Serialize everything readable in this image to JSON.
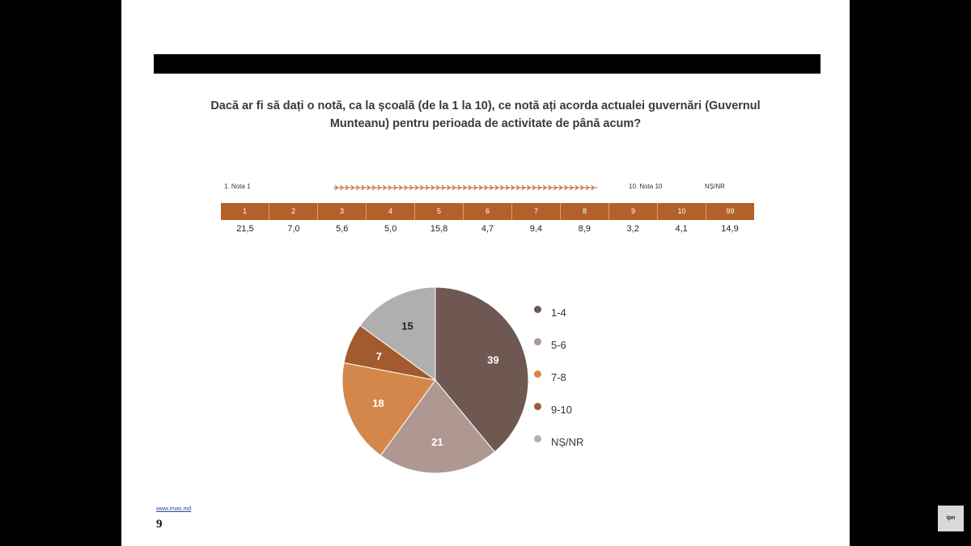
{
  "question": "Dacă ar fi să dați o notă, ca la școală (de la 1 la 10), ce notă ați acorda actualei guvernări (Guvernul Munteanu) pentru perioada de activitate de până acum?",
  "scale": {
    "left_label": "1. Nota 1",
    "right_label": "10. Nota 10",
    "nsnr_label": "NȘ/NR"
  },
  "grade_table": {
    "headers": [
      "1",
      "2",
      "3",
      "4",
      "5",
      "6",
      "7",
      "8",
      "9",
      "10",
      "99"
    ],
    "values": [
      "21,5",
      "7,0",
      "5,6",
      "5,0",
      "15,8",
      "4,7",
      "9,4",
      "8,9",
      "3,2",
      "4,1",
      "14,9"
    ]
  },
  "chart_data": {
    "type": "pie",
    "title": "",
    "categories": [
      "1-4",
      "5-6",
      "7-8",
      "9-10",
      "NȘ/NR"
    ],
    "values": [
      39,
      21,
      18,
      7,
      15
    ],
    "colors": [
      "#6e5851",
      "#ae9891",
      "#d4874a",
      "#a25a2f",
      "#b0aeae"
    ]
  },
  "footer": {
    "link": "www.imas.md",
    "page_number": "9"
  },
  "logo_text": "ipn"
}
